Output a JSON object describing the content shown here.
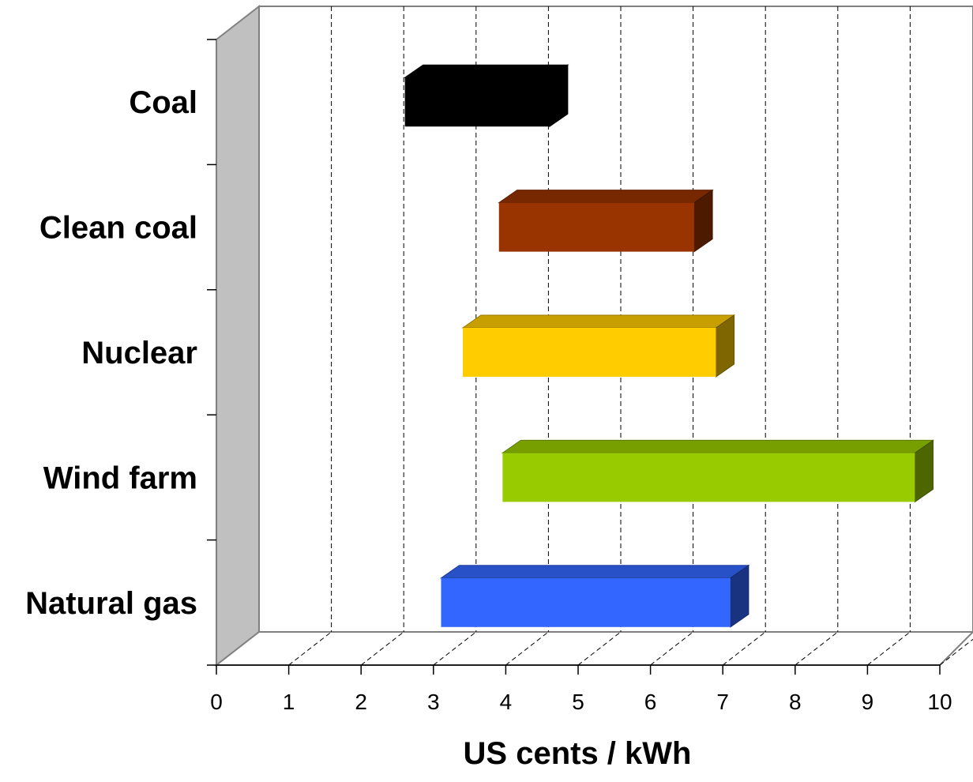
{
  "chart_data": {
    "type": "bar",
    "orientation": "horizontal",
    "style": "3d-floating-range",
    "xlabel": "US cents / kWh",
    "ylabel": "",
    "xlim": [
      0,
      10
    ],
    "x_ticks": [
      "0",
      "1",
      "2",
      "3",
      "4",
      "5",
      "6",
      "7",
      "8",
      "9",
      "10"
    ],
    "grid": true,
    "categories": [
      "Coal",
      "Clean coal",
      "Nuclear",
      "Wind farm",
      "Natural gas"
    ],
    "ranges": [
      {
        "category": "Coal",
        "low": 2.3,
        "high": 4.3,
        "color": "#000000"
      },
      {
        "category": "Clean coal",
        "low": 3.6,
        "high": 6.3,
        "color": "#993300"
      },
      {
        "category": "Nuclear",
        "low": 3.1,
        "high": 6.6,
        "color": "#ffcc00"
      },
      {
        "category": "Wind farm",
        "low": 3.65,
        "high": 9.35,
        "color": "#99cc00"
      },
      {
        "category": "Natural gas",
        "low": 2.8,
        "high": 6.8,
        "color": "#3366ff"
      }
    ]
  }
}
